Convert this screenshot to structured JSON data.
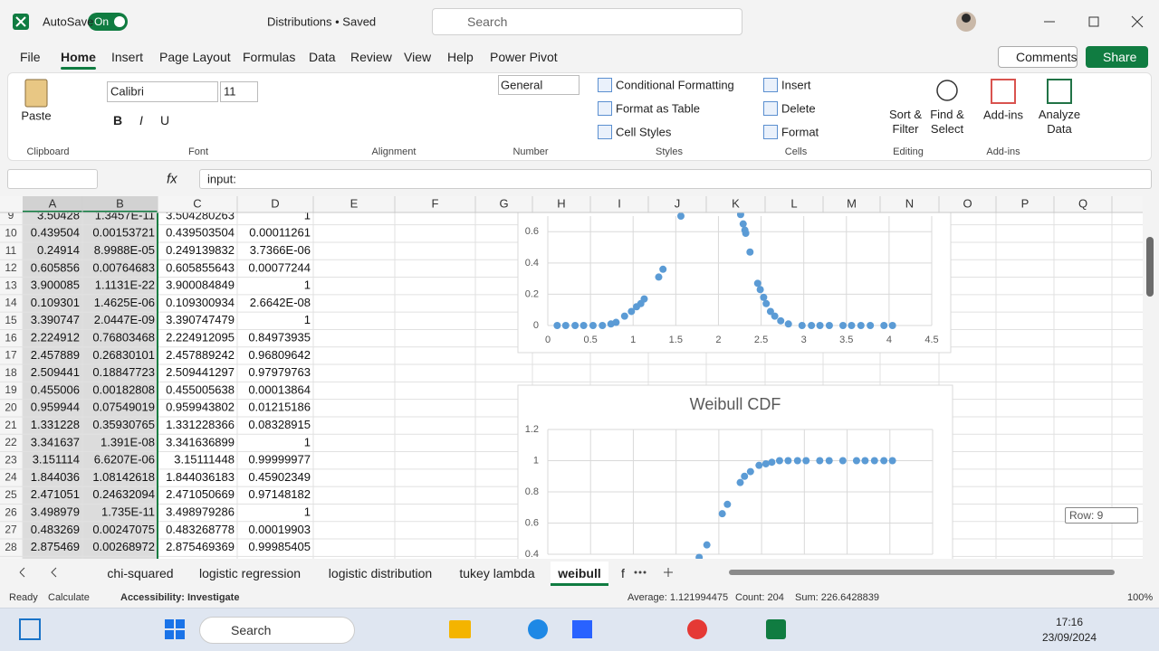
{
  "title_bar": {
    "autosave": "AutoSave",
    "toggle": "On",
    "file_name": "Distributions • Saved",
    "search": "Search"
  },
  "menu": {
    "tabs": [
      "File",
      "Home",
      "Insert",
      "Page Layout",
      "Formulas",
      "Data",
      "Review",
      "View",
      "Help",
      "Power Pivot"
    ],
    "active_tab": 1,
    "comments": "Comments",
    "share": "Share"
  },
  "ribbon": {
    "paste": "Paste",
    "font_name": "Calibri",
    "font_size": "11",
    "font_buttons": [
      "B",
      "I",
      "U"
    ],
    "number_format": "General",
    "styles": [
      "Conditional Formatting",
      "Format as Table",
      "Cell Styles"
    ],
    "cells": [
      "Insert",
      "Delete",
      "Format"
    ],
    "editing": [
      "Sort & Filter",
      "Find & Select"
    ],
    "add_ins": "Add-ins",
    "analyze": "Analyze Data",
    "groups": [
      "Clipboard",
      "Font",
      "Alignment",
      "Number",
      "Styles",
      "Cells",
      "Editing",
      "Add-ins"
    ]
  },
  "formula_bar": {
    "fx": "fx",
    "content": "input:"
  },
  "sheet": {
    "columns": [
      "A",
      "B",
      "C",
      "D",
      "E",
      "F",
      "G",
      "H",
      "I",
      "J",
      "K",
      "L",
      "M",
      "N",
      "O",
      "P",
      "Q"
    ],
    "rows": [
      {
        "n": "9",
        "cells": [
          "3.50428",
          "1.3457E-11",
          "3.504280263",
          "1"
        ]
      },
      {
        "n": "10",
        "cells": [
          "0.439504",
          "0.00153721",
          "0.439503504",
          "0.00011261"
        ]
      },
      {
        "n": "11",
        "cells": [
          "0.24914",
          "8.9988E-05",
          "0.249139832",
          "3.7366E-06"
        ]
      },
      {
        "n": "12",
        "cells": [
          "0.605856",
          "0.00764683",
          "0.605855643",
          "0.00077244"
        ]
      },
      {
        "n": "13",
        "cells": [
          "3.900085",
          "1.1131E-22",
          "3.900084849",
          "1"
        ]
      },
      {
        "n": "14",
        "cells": [
          "0.109301",
          "1.4625E-06",
          "0.109300934",
          "2.6642E-08"
        ]
      },
      {
        "n": "15",
        "cells": [
          "3.390747",
          "2.0447E-09",
          "3.390747479",
          "1"
        ]
      },
      {
        "n": "16",
        "cells": [
          "2.224912",
          "0.76803468",
          "2.224912095",
          "0.84973935"
        ]
      },
      {
        "n": "17",
        "cells": [
          "2.457889",
          "0.26830101",
          "2.457889242",
          "0.96809642"
        ]
      },
      {
        "n": "18",
        "cells": [
          "2.509441",
          "0.18847723",
          "2.509441297",
          "0.97979763"
        ]
      },
      {
        "n": "19",
        "cells": [
          "0.455006",
          "0.00182808",
          "0.455005638",
          "0.00013864"
        ]
      },
      {
        "n": "20",
        "cells": [
          "0.959944",
          "0.07549019",
          "0.959943802",
          "0.01215186"
        ]
      },
      {
        "n": "21",
        "cells": [
          "1.331228",
          "0.35930765",
          "1.331228366",
          "0.08328915"
        ]
      },
      {
        "n": "22",
        "cells": [
          "3.341637",
          "1.391E-08",
          "3.341636899",
          "1"
        ]
      },
      {
        "n": "23",
        "cells": [
          "3.151114",
          "6.6207E-06",
          "3.15111448",
          "0.99999977"
        ]
      },
      {
        "n": "24",
        "cells": [
          "1.844036",
          "1.08142618",
          "1.844036183",
          "0.45902349"
        ]
      },
      {
        "n": "25",
        "cells": [
          "2.471051",
          "0.24632094",
          "2.471050669",
          "0.97148182"
        ]
      },
      {
        "n": "26",
        "cells": [
          "3.498979",
          "1.735E-11",
          "3.498979286",
          "1"
        ]
      },
      {
        "n": "27",
        "cells": [
          "0.483269",
          "0.00247075",
          "0.483268778",
          "0.00019903"
        ]
      },
      {
        "n": "28",
        "cells": [
          "2.875469",
          "0.00268972",
          "2.875469369",
          "0.99985405"
        ]
      }
    ],
    "row_tooltip": "Row: 9"
  },
  "chart_data": [
    {
      "type": "scatter",
      "color": "#5b9bd5",
      "xlim": [
        0,
        4.5
      ],
      "ylim": [
        0,
        0.7
      ],
      "xticks": [
        0,
        0.5,
        1,
        1.5,
        2,
        2.5,
        3,
        3.5,
        4,
        4.5
      ],
      "yticks": [
        0,
        0.2,
        0.4,
        0.6
      ],
      "grid": true,
      "x": [
        0.11,
        0.21,
        0.32,
        0.42,
        0.53,
        0.64,
        0.74,
        0.8,
        0.9,
        0.98,
        1.04,
        1.09,
        1.13,
        1.3,
        1.35,
        1.56,
        2.26,
        2.29,
        2.31,
        2.32,
        2.37,
        2.46,
        2.49,
        2.53,
        2.56,
        2.61,
        2.66,
        2.73,
        2.82,
        2.98,
        3.09,
        3.19,
        3.3,
        3.46,
        3.56,
        3.67,
        3.78,
        3.94,
        4.04
      ],
      "values": [
        0,
        0,
        0,
        0,
        0,
        0,
        0.01,
        0.02,
        0.06,
        0.09,
        0.12,
        0.14,
        0.17,
        0.31,
        0.36,
        0.7,
        0.71,
        0.65,
        0.61,
        0.59,
        0.47,
        0.27,
        0.23,
        0.18,
        0.14,
        0.09,
        0.06,
        0.03,
        0.01,
        0,
        0,
        0,
        0,
        0,
        0,
        0,
        0,
        0,
        0
      ]
    },
    {
      "type": "scatter",
      "title": "Weibull CDF",
      "color": "#5b9bd5",
      "xlim": [
        0,
        4.5
      ],
      "ylim": [
        0.4,
        1.2
      ],
      "xticks": [
        0,
        0.5,
        1,
        1.5,
        2,
        2.5,
        3,
        3.5,
        4,
        4.5
      ],
      "yticks": [
        0.4,
        0.6,
        0.8,
        1,
        1.2
      ],
      "grid": true,
      "x": [
        1.77,
        1.86,
        2.04,
        2.1,
        2.25,
        2.3,
        2.37,
        2.47,
        2.55,
        2.62,
        2.71,
        2.81,
        2.92,
        3.02,
        3.18,
        3.29,
        3.45,
        3.61,
        3.71,
        3.82,
        3.93,
        4.03
      ],
      "values": [
        0.38,
        0.46,
        0.66,
        0.72,
        0.86,
        0.9,
        0.93,
        0.97,
        0.98,
        0.99,
        1,
        1,
        1,
        1,
        1,
        1,
        1,
        1,
        1,
        1,
        1,
        1
      ]
    }
  ],
  "sheet_tabs": {
    "tabs": [
      "chi-squared",
      "logistic regression",
      "logistic distribution",
      "tukey lambda",
      "weibull",
      "f"
    ],
    "active_tab": 4
  },
  "status_bar": {
    "mode": "Ready",
    "calculate": "Calculate",
    "accessibility": "Accessibility: Investigate",
    "average": "Average: 1.121994475",
    "count": "Count: 204",
    "sum": "Sum: 226.6428839",
    "zoom": "100%"
  },
  "taskbar": {
    "search": "Search",
    "time": "17:16",
    "date": "23/09/2024"
  }
}
